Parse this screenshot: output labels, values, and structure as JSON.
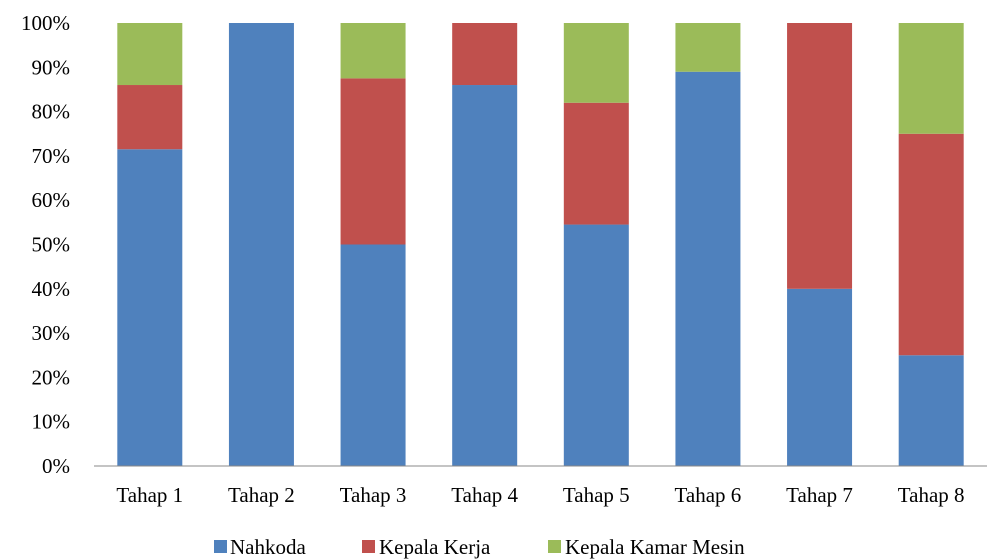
{
  "chart_data": {
    "type": "bar",
    "stacked": "percent",
    "categories": [
      "Tahap 1",
      "Tahap 2",
      "Tahap 3",
      "Tahap 4",
      "Tahap 5",
      "Tahap 6",
      "Tahap 7",
      "Tahap 8"
    ],
    "series": [
      {
        "name": "Nahkoda",
        "color": "#4F81BD",
        "values": [
          71.5,
          100,
          50,
          86,
          54.5,
          89,
          40,
          25
        ]
      },
      {
        "name": "Kepala Kerja",
        "color": "#C0504D",
        "values": [
          14.5,
          0,
          37.5,
          14,
          27.5,
          0,
          60,
          50
        ]
      },
      {
        "name": "Kepala Kamar Mesin",
        "color": "#9BBB59",
        "values": [
          14,
          0,
          12.5,
          0,
          18,
          11,
          0,
          25
        ]
      }
    ],
    "y_ticks": [
      "0%",
      "10%",
      "20%",
      "30%",
      "40%",
      "50%",
      "60%",
      "70%",
      "80%",
      "90%",
      "100%"
    ],
    "ylim": [
      0,
      100
    ],
    "grid": false,
    "legend_position": "bottom"
  }
}
